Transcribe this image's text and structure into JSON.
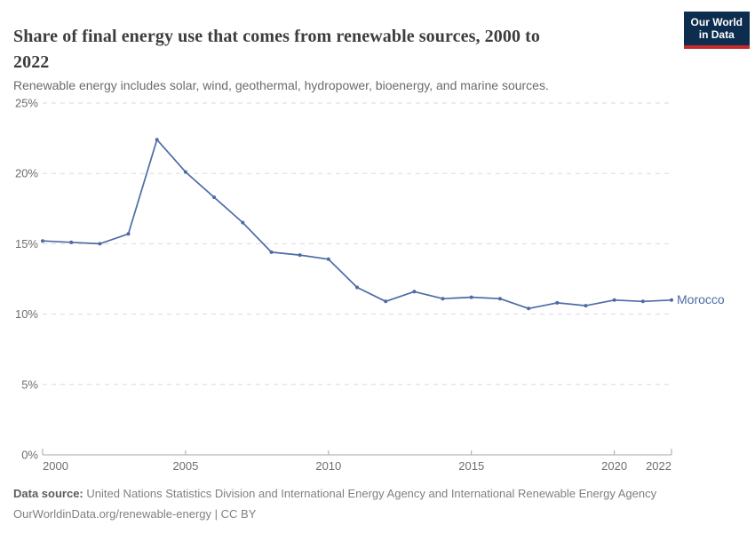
{
  "header": {
    "title": "Share of final energy use that comes from renewable sources, 2000 to 2022",
    "subtitle": "Renewable energy includes solar, wind, geothermal, hydropower, bioenergy, and marine sources.",
    "logo": {
      "line1": "Our World",
      "line2": "in Data"
    }
  },
  "chart_data": {
    "type": "line",
    "title": "Share of final energy use that comes from renewable sources, 2000 to 2022",
    "xlabel": "",
    "ylabel": "",
    "unit": "%",
    "xlim": [
      2000,
      2022
    ],
    "ylim": [
      0,
      25
    ],
    "yticks": [
      0,
      5,
      10,
      15,
      20,
      25
    ],
    "ytick_labels": [
      "0%",
      "5%",
      "10%",
      "15%",
      "20%",
      "25%"
    ],
    "xticks": [
      2000,
      2005,
      2010,
      2015,
      2020,
      2022
    ],
    "grid": "horizontal-dashed",
    "legend_position": "line-end-label",
    "series": [
      {
        "name": "Morocco",
        "x": [
          2000,
          2001,
          2002,
          2003,
          2004,
          2005,
          2006,
          2007,
          2008,
          2009,
          2010,
          2011,
          2012,
          2013,
          2014,
          2015,
          2016,
          2017,
          2018,
          2019,
          2020,
          2021,
          2022
        ],
        "values": [
          15.2,
          15.1,
          15.0,
          15.7,
          22.4,
          20.1,
          18.3,
          16.5,
          14.4,
          14.2,
          13.9,
          11.9,
          10.9,
          11.6,
          11.1,
          11.2,
          11.1,
          10.4,
          10.8,
          10.6,
          11.0,
          10.9,
          11.0
        ]
      }
    ]
  },
  "footer": {
    "data_source_label": "Data source:",
    "data_source_text": " United Nations Statistics Division and International Energy Agency and International Renewable Energy Agency",
    "link_text": "OurWorldinData.org/renewable-energy | CC BY"
  },
  "colors": {
    "line": "#4d6ba5",
    "grid": "#dadada",
    "axis": "#a6a6a6",
    "tick_text": "#6e6e6e",
    "title_text": "#3d3d3d",
    "logo_bg": "#0d2d4f",
    "logo_red": "#c5292a"
  }
}
